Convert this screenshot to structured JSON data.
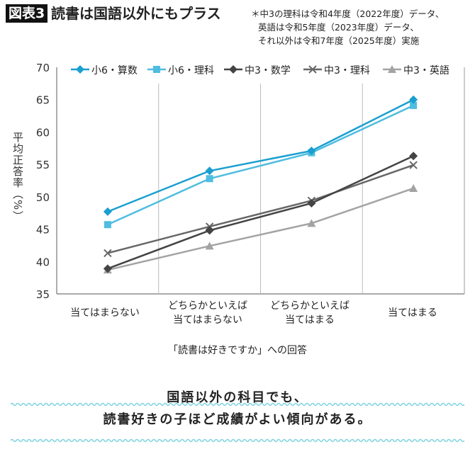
{
  "header": {
    "badge": "図表3",
    "title": "読書は国語以外にもプラス",
    "note": [
      "＊中3の理科は令和4年度（2022年度）データ、",
      "英語は令和5年度（2023年度）データ、",
      "それ以外は令和7年度（2025年度）実施"
    ]
  },
  "conclusion": [
    "国語以外の科目でも、",
    "読書好きの子ほど成績がよい傾向がある。"
  ],
  "wave_color": "#7fd3e0",
  "chart_data": {
    "type": "line",
    "title": "読書は国語以外にもプラス",
    "xlabel": "「読書は好きですか」への回答",
    "ylabel": "平均正答率（%）",
    "categories": [
      "当てはまらない",
      "どちらかといえば\n当てはまらない",
      "どちらかといえば\n当てはまる",
      "当てはまる"
    ],
    "ylim": [
      35,
      70
    ],
    "yticks": [
      35,
      40,
      45,
      50,
      55,
      60,
      65,
      70
    ],
    "grid": "vertical separators between categories",
    "legend": "top",
    "series": [
      {
        "name": "小6・算数",
        "marker": "diamond",
        "color": "#1a9fd0",
        "values": [
          47.7,
          54.0,
          57.1,
          65.0
        ]
      },
      {
        "name": "小6・理科",
        "marker": "square",
        "color": "#4fbde0",
        "values": [
          45.7,
          52.8,
          56.8,
          64.1
        ]
      },
      {
        "name": "中3・数学",
        "marker": "diamond",
        "color": "#444444",
        "values": [
          38.9,
          44.8,
          49.0,
          56.3
        ]
      },
      {
        "name": "中3・理科",
        "marker": "x",
        "color": "#676767",
        "values": [
          41.3,
          45.4,
          49.4,
          54.9
        ]
      },
      {
        "name": "中3・英語",
        "marker": "triangle",
        "color": "#a3a3a3",
        "values": [
          38.7,
          42.4,
          45.9,
          51.3
        ]
      }
    ]
  }
}
